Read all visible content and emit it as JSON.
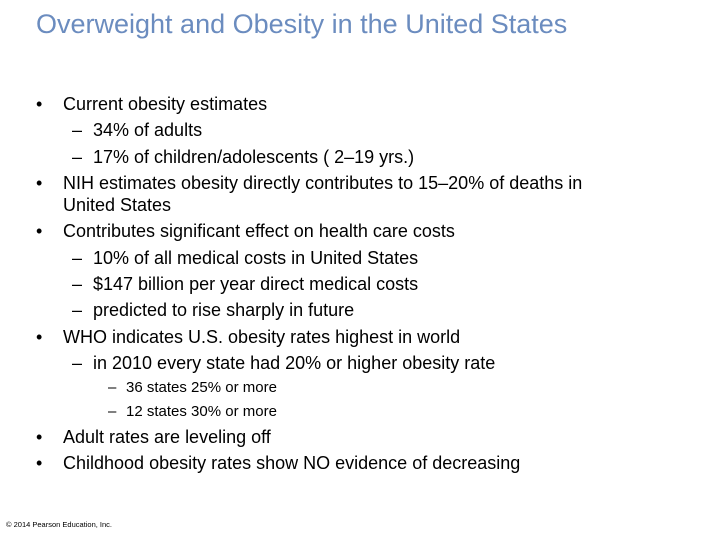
{
  "slide": {
    "title": "Overweight and Obesity in the United States",
    "bullets": [
      {
        "text": "Current obesity estimates",
        "marker": "•"
      },
      {
        "text": "34% of adults",
        "marker": "–"
      },
      {
        "text": "17% of children/adolescents ( 2–19 yrs.)",
        "marker": "–"
      },
      {
        "text": "NIH estimates obesity directly contributes to 15–20% of deaths in",
        "marker": "•"
      },
      {
        "text": "United States",
        "marker": ""
      },
      {
        "text": "Contributes significant effect on health care costs",
        "marker": "•"
      },
      {
        "text": "10% of all medical costs in United States",
        "marker": "–"
      },
      {
        "text": "$147 billion per year direct medical costs",
        "marker": "–"
      },
      {
        "text": "predicted to rise sharply in future",
        "marker": "–"
      },
      {
        "text": "WHO indicates U.S. obesity rates highest in world",
        "marker": "•"
      },
      {
        "text": "in 2010 every state had 20% or higher obesity rate",
        "marker": "–"
      },
      {
        "text": "36 states 25% or more",
        "marker": "–"
      },
      {
        "text": "12 states 30% or more",
        "marker": "–"
      },
      {
        "text": "Adult rates are leveling off",
        "marker": "•"
      },
      {
        "text": "Childhood obesity rates show NO evidence of decreasing",
        "marker": "•"
      }
    ],
    "footer": "© 2014 Pearson Education, Inc."
  },
  "colors": {
    "title": "#6b8cbf",
    "text": "#000000",
    "background": "#ffffff"
  }
}
